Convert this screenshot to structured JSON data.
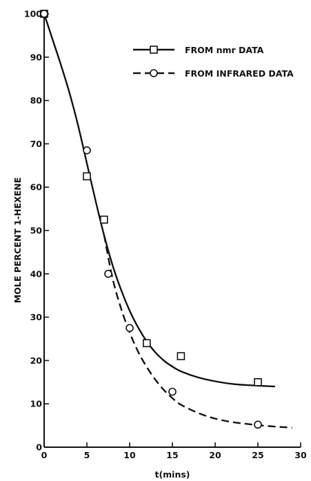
{
  "chart_data": {
    "type": "line",
    "xlabel": "t(mins)",
    "ylabel": "MOLE PERCENT 1-HEXENE",
    "xlim": [
      0,
      30
    ],
    "ylim": [
      0,
      100
    ],
    "xticks": [
      0,
      5,
      10,
      15,
      20,
      25,
      30
    ],
    "yticks": [
      0,
      10,
      20,
      30,
      40,
      50,
      60,
      70,
      80,
      90,
      100
    ],
    "grid": false,
    "legend_position": "top-right",
    "series": [
      {
        "name": "FROM nmr DATA",
        "line_style": "solid",
        "marker": "square",
        "color": "#111111",
        "points": [
          {
            "x": 0,
            "y": 100
          },
          {
            "x": 5,
            "y": 62.5
          },
          {
            "x": 7,
            "y": 52.5
          },
          {
            "x": 12,
            "y": 24
          },
          {
            "x": 16,
            "y": 21
          },
          {
            "x": 25,
            "y": 15
          }
        ],
        "curve": [
          {
            "x": 0,
            "y": 100
          },
          {
            "x": 1,
            "y": 94
          },
          {
            "x": 2,
            "y": 88
          },
          {
            "x": 3,
            "y": 81.5
          },
          {
            "x": 4,
            "y": 74
          },
          {
            "x": 5,
            "y": 65.5
          },
          {
            "x": 6,
            "y": 57
          },
          {
            "x": 7,
            "y": 49
          },
          {
            "x": 8,
            "y": 42
          },
          {
            "x": 9,
            "y": 36.3
          },
          {
            "x": 10,
            "y": 31.5
          },
          {
            "x": 11,
            "y": 27.6
          },
          {
            "x": 12,
            "y": 24.4
          },
          {
            "x": 13,
            "y": 21.9
          },
          {
            "x": 14,
            "y": 20
          },
          {
            "x": 15,
            "y": 18.6
          },
          {
            "x": 16,
            "y": 17.5
          },
          {
            "x": 18,
            "y": 16.1
          },
          {
            "x": 20,
            "y": 15.2
          },
          {
            "x": 22,
            "y": 14.6
          },
          {
            "x": 24,
            "y": 14.3
          },
          {
            "x": 27,
            "y": 14
          }
        ]
      },
      {
        "name": "FROM INFRARED DATA",
        "line_style": "dashed",
        "marker": "circle",
        "color": "#111111",
        "points": [
          {
            "x": 0,
            "y": 100
          },
          {
            "x": 5,
            "y": 68.5
          },
          {
            "x": 7.5,
            "y": 40
          },
          {
            "x": 10,
            "y": 27.5
          },
          {
            "x": 15,
            "y": 12.8
          },
          {
            "x": 25,
            "y": 5.2
          }
        ],
        "curve": [
          {
            "x": 7,
            "y": 49
          },
          {
            "x": 8,
            "y": 39
          },
          {
            "x": 9,
            "y": 32
          },
          {
            "x": 10,
            "y": 26.5
          },
          {
            "x": 11,
            "y": 22
          },
          {
            "x": 12,
            "y": 18.5
          },
          {
            "x": 13,
            "y": 15.6
          },
          {
            "x": 14,
            "y": 13.2
          },
          {
            "x": 15,
            "y": 11.3
          },
          {
            "x": 16,
            "y": 9.8
          },
          {
            "x": 18,
            "y": 7.9
          },
          {
            "x": 20,
            "y": 6.6
          },
          {
            "x": 22,
            "y": 5.8
          },
          {
            "x": 24,
            "y": 5.3
          },
          {
            "x": 26,
            "y": 4.9
          },
          {
            "x": 29,
            "y": 4.5
          }
        ]
      }
    ]
  }
}
